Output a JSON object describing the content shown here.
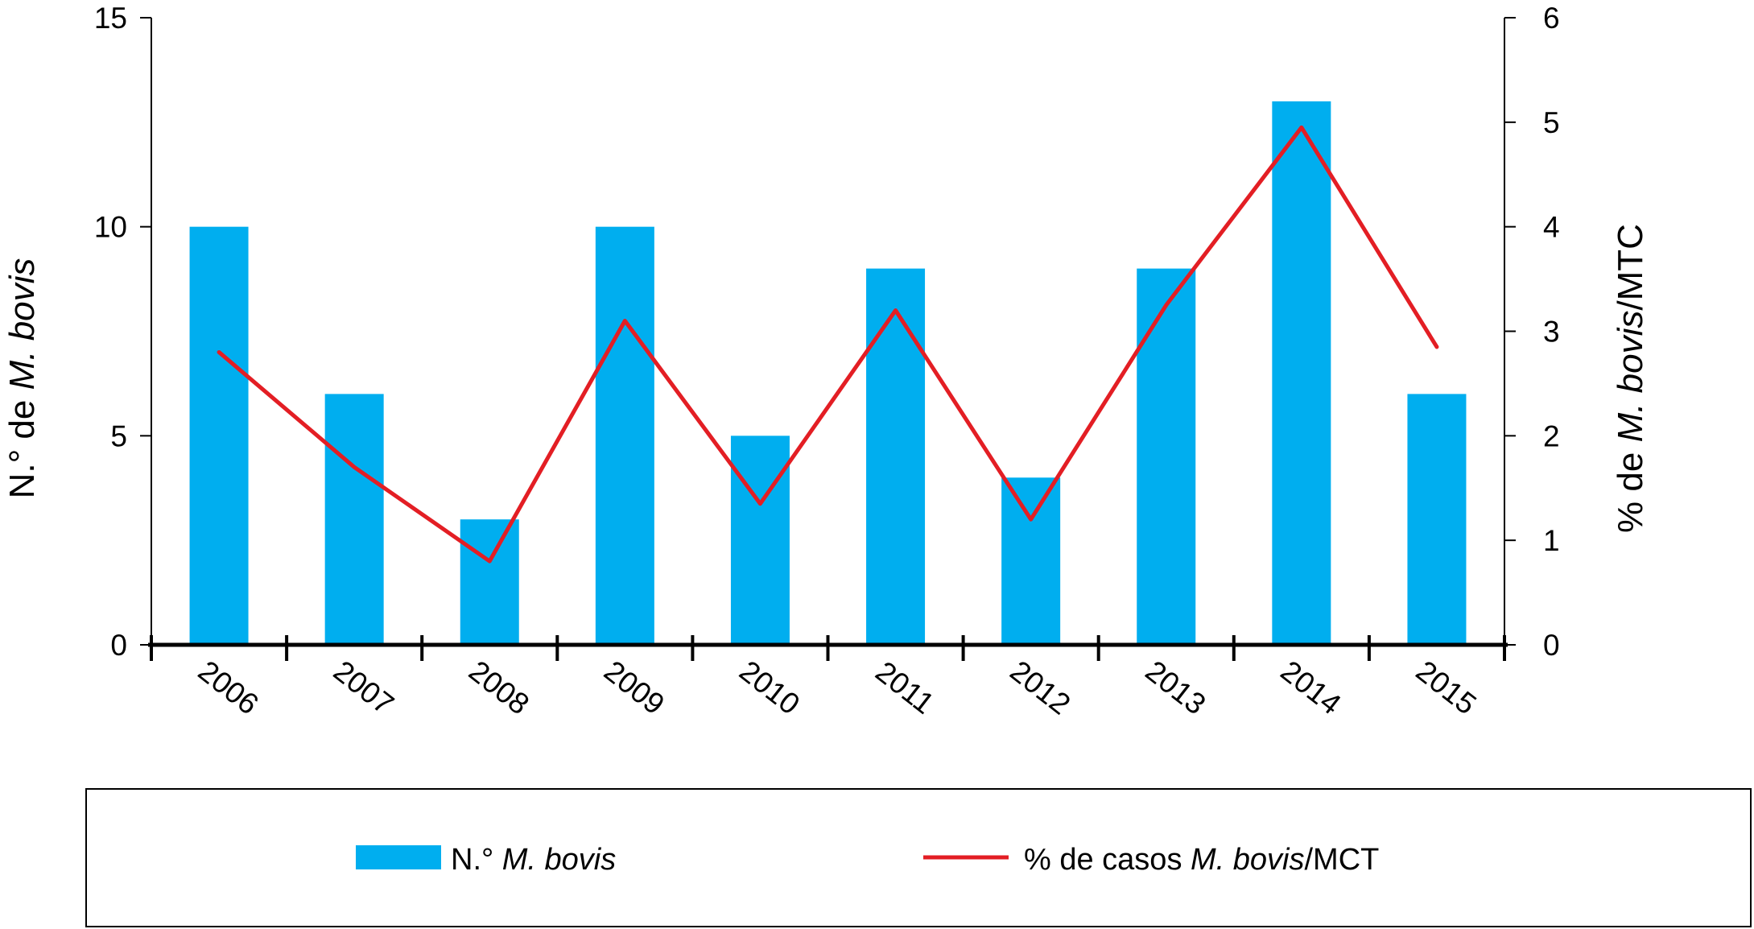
{
  "chart_data": {
    "type": "bar",
    "categories": [
      "2006",
      "2007",
      "2008",
      "2009",
      "2010",
      "2011",
      "2012",
      "2013",
      "2014",
      "2015"
    ],
    "series": [
      {
        "name": "N.° M. bovis",
        "type": "bar",
        "axis": "left",
        "color": "#00aeef",
        "values": [
          10,
          6,
          3,
          10,
          5,
          9,
          4,
          9,
          13,
          6
        ]
      },
      {
        "name": "% de casos M. bovis/MCT",
        "type": "line",
        "axis": "right",
        "color": "#e31e24",
        "values": [
          2.8,
          1.7,
          0.8,
          3.1,
          1.35,
          3.2,
          1.2,
          3.25,
          4.95,
          2.85
        ]
      }
    ],
    "y_left": {
      "label_prefix": "N.° de ",
      "label_italic": "M. bovis",
      "label_suffix": "",
      "lim": [
        0,
        15
      ],
      "ticks": [
        0,
        5,
        10,
        15
      ]
    },
    "y_right": {
      "label_prefix": "% de ",
      "label_italic": "M. bovis",
      "label_suffix": "/MTC",
      "lim": [
        0,
        6
      ],
      "ticks": [
        0,
        1,
        2,
        3,
        4,
        5,
        6
      ]
    },
    "legend": {
      "placement": "bottom",
      "items": [
        {
          "prefix": "N.° ",
          "italic": "M. bovis",
          "suffix": ""
        },
        {
          "prefix": "% de casos ",
          "italic": "M. bovis",
          "suffix": "/MCT"
        }
      ]
    },
    "grid": false
  }
}
